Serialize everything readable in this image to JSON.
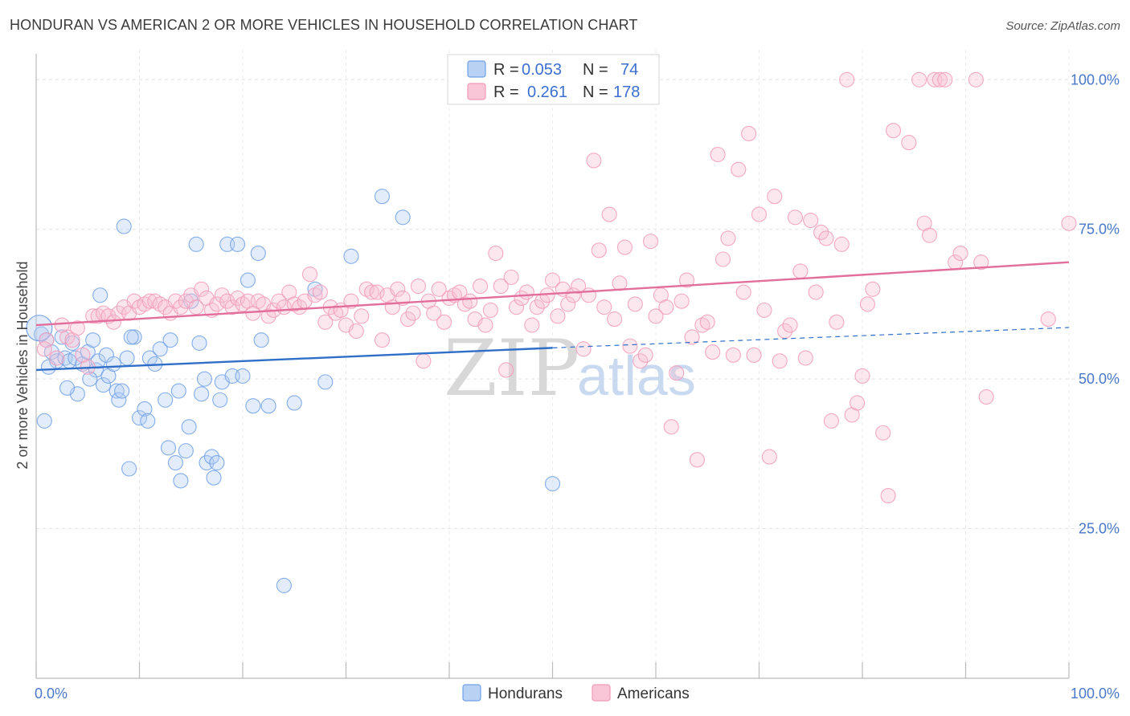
{
  "title": "HONDURAN VS AMERICAN 2 OR MORE VEHICLES IN HOUSEHOLD CORRELATION CHART",
  "source": "Source: ZipAtlas.com",
  "watermark": {
    "zip": "ZIP",
    "atlas": "atlas"
  },
  "chart_data": {
    "type": "scatter",
    "xlabel": "",
    "ylabel": "2 or more Vehicles in Household",
    "xlim": [
      0,
      100
    ],
    "ylim": [
      0,
      105
    ],
    "x_tick_labels": [
      {
        "v": 0,
        "label": "0.0%"
      },
      {
        "v": 100,
        "label": "100.0%"
      }
    ],
    "y_tick_labels": [
      {
        "v": 25,
        "label": "25.0%"
      },
      {
        "v": 50,
        "label": "50.0%"
      },
      {
        "v": 75,
        "label": "75.0%"
      },
      {
        "v": 100,
        "label": "100.0%"
      }
    ],
    "legend": [
      {
        "r_label": "R =",
        "r": "0.053",
        "n_label": "N =",
        "n": "74"
      },
      {
        "r_label": "R =",
        "r": "0.261",
        "n_label": "N =",
        "n": "178"
      }
    ],
    "series": [
      {
        "name": "Hondurans",
        "color": "#6fa0e6",
        "line_color": "#2f6fc8",
        "trend": {
          "x0": 0,
          "y0": 51.5,
          "x1": 50,
          "y1": 55.2,
          "dash_to_x": 100,
          "dash_to_y": 58.6
        },
        "points": [
          [
            0.5,
            57.5
          ],
          [
            0.8,
            43.0
          ],
          [
            1.0,
            56.5
          ],
          [
            1.5,
            54.5
          ],
          [
            2.0,
            53.0
          ],
          [
            2.5,
            57.0
          ],
          [
            2.8,
            53.5
          ],
          [
            3.2,
            53.0
          ],
          [
            3.5,
            56.0
          ],
          [
            3.8,
            53.5
          ],
          [
            4.0,
            47.5
          ],
          [
            4.5,
            52.5
          ],
          [
            5.0,
            54.5
          ],
          [
            5.5,
            56.5
          ],
          [
            5.8,
            51.5
          ],
          [
            6.0,
            53.0
          ],
          [
            6.5,
            49.0
          ],
          [
            6.8,
            54.0
          ],
          [
            7.0,
            50.5
          ],
          [
            7.5,
            52.5
          ],
          [
            7.8,
            48.0
          ],
          [
            8.0,
            46.5
          ],
          [
            8.3,
            48.0
          ],
          [
            8.5,
            75.5
          ],
          [
            8.8,
            53.5
          ],
          [
            9.0,
            35.0
          ],
          [
            9.5,
            57.0
          ],
          [
            10.0,
            43.5
          ],
          [
            10.5,
            45.0
          ],
          [
            10.8,
            43.0
          ],
          [
            11.0,
            53.5
          ],
          [
            11.5,
            52.5
          ],
          [
            12.0,
            55.0
          ],
          [
            12.5,
            46.5
          ],
          [
            13.0,
            56.5
          ],
          [
            13.5,
            36.0
          ],
          [
            13.8,
            48.0
          ],
          [
            14.0,
            33.0
          ],
          [
            14.5,
            38.0
          ],
          [
            15.0,
            63.0
          ],
          [
            15.5,
            72.5
          ],
          [
            15.8,
            56.0
          ],
          [
            16.0,
            47.5
          ],
          [
            16.3,
            50.0
          ],
          [
            16.5,
            36.0
          ],
          [
            17.0,
            37.0
          ],
          [
            17.2,
            33.5
          ],
          [
            17.5,
            36.0
          ],
          [
            18.0,
            49.5
          ],
          [
            18.5,
            72.5
          ],
          [
            19.0,
            50.5
          ],
          [
            19.5,
            72.5
          ],
          [
            20.0,
            50.5
          ],
          [
            20.5,
            66.5
          ],
          [
            21.0,
            45.5
          ],
          [
            21.5,
            71.0
          ],
          [
            21.8,
            56.5
          ],
          [
            22.5,
            45.5
          ],
          [
            24.0,
            15.5
          ],
          [
            25.0,
            46.0
          ],
          [
            27.0,
            65.0
          ],
          [
            28.0,
            49.5
          ],
          [
            30.5,
            70.5
          ],
          [
            33.5,
            80.5
          ],
          [
            35.5,
            77.0
          ],
          [
            50.0,
            32.5
          ],
          [
            1.2,
            52.0
          ],
          [
            6.2,
            64.0
          ],
          [
            9.2,
            57.0
          ],
          [
            12.8,
            38.5
          ],
          [
            17.8,
            46.5
          ],
          [
            3.0,
            48.5
          ],
          [
            5.2,
            50.0
          ],
          [
            14.8,
            42.0
          ]
        ]
      },
      {
        "name": "Americans",
        "color": "#f29ab8",
        "line_color": "#e26e9b",
        "trend": {
          "x0": 0,
          "y0": 59.0,
          "x1": 100,
          "y1": 69.5
        },
        "points": [
          [
            1.0,
            56.5
          ],
          [
            2.0,
            53.5
          ],
          [
            3.0,
            57.0
          ],
          [
            3.5,
            56.5
          ],
          [
            4.0,
            58.5
          ],
          [
            5.0,
            52.0
          ],
          [
            5.5,
            60.5
          ],
          [
            6.0,
            60.5
          ],
          [
            6.5,
            61.0
          ],
          [
            7.0,
            60.5
          ],
          [
            7.5,
            59.5
          ],
          [
            8.0,
            61.0
          ],
          [
            8.5,
            62.0
          ],
          [
            9.0,
            61.0
          ],
          [
            9.5,
            63.0
          ],
          [
            10.0,
            62.0
          ],
          [
            10.5,
            62.5
          ],
          [
            11.0,
            63.0
          ],
          [
            11.5,
            63.0
          ],
          [
            12.0,
            62.5
          ],
          [
            12.5,
            62.0
          ],
          [
            13.0,
            61.0
          ],
          [
            13.5,
            63.0
          ],
          [
            14.0,
            62.0
          ],
          [
            14.5,
            63.0
          ],
          [
            15.0,
            64.0
          ],
          [
            15.5,
            62.0
          ],
          [
            16.0,
            65.0
          ],
          [
            16.5,
            63.5
          ],
          [
            17.0,
            61.5
          ],
          [
            17.5,
            62.5
          ],
          [
            18.0,
            64.0
          ],
          [
            18.5,
            63.0
          ],
          [
            19.0,
            62.0
          ],
          [
            19.5,
            63.5
          ],
          [
            20.0,
            62.5
          ],
          [
            20.5,
            63.0
          ],
          [
            21.0,
            61.0
          ],
          [
            21.5,
            63.0
          ],
          [
            22.0,
            62.5
          ],
          [
            22.5,
            60.5
          ],
          [
            23.0,
            61.5
          ],
          [
            23.5,
            63.0
          ],
          [
            24.0,
            62.0
          ],
          [
            24.5,
            64.5
          ],
          [
            25.0,
            62.5
          ],
          [
            25.5,
            62.0
          ],
          [
            26.0,
            63.0
          ],
          [
            26.5,
            67.5
          ],
          [
            27.0,
            64.0
          ],
          [
            27.5,
            64.5
          ],
          [
            28.0,
            59.5
          ],
          [
            28.5,
            62.0
          ],
          [
            29.0,
            61.0
          ],
          [
            29.5,
            61.5
          ],
          [
            30.0,
            59.0
          ],
          [
            30.5,
            63.0
          ],
          [
            31.0,
            58.0
          ],
          [
            31.5,
            60.5
          ],
          [
            32.0,
            65.0
          ],
          [
            32.5,
            64.5
          ],
          [
            33.0,
            64.5
          ],
          [
            33.5,
            56.5
          ],
          [
            34.0,
            64.0
          ],
          [
            34.5,
            62.0
          ],
          [
            35.0,
            65.0
          ],
          [
            35.5,
            63.5
          ],
          [
            36.0,
            60.0
          ],
          [
            36.5,
            61.0
          ],
          [
            37.0,
            65.5
          ],
          [
            37.5,
            53.0
          ],
          [
            38.0,
            63.0
          ],
          [
            38.5,
            61.0
          ],
          [
            39.0,
            65.0
          ],
          [
            39.5,
            59.5
          ],
          [
            40.0,
            63.5
          ],
          [
            40.5,
            64.0
          ],
          [
            41.0,
            64.5
          ],
          [
            41.5,
            62.5
          ],
          [
            42.0,
            63.0
          ],
          [
            42.5,
            60.0
          ],
          [
            43.0,
            65.5
          ],
          [
            43.5,
            59.0
          ],
          [
            44.0,
            61.5
          ],
          [
            44.5,
            71.0
          ],
          [
            45.0,
            65.5
          ],
          [
            45.5,
            51.5
          ],
          [
            46.0,
            67.0
          ],
          [
            46.5,
            62.0
          ],
          [
            47.0,
            63.5
          ],
          [
            47.5,
            64.5
          ],
          [
            48.0,
            59.0
          ],
          [
            48.5,
            62.0
          ],
          [
            49.0,
            63.0
          ],
          [
            49.5,
            64.0
          ],
          [
            50.0,
            66.5
          ],
          [
            50.5,
            60.5
          ],
          [
            51.0,
            65.0
          ],
          [
            51.5,
            62.5
          ],
          [
            52.0,
            64.0
          ],
          [
            52.5,
            65.5
          ],
          [
            53.0,
            55.0
          ],
          [
            53.5,
            64.0
          ],
          [
            54.0,
            86.5
          ],
          [
            54.5,
            71.5
          ],
          [
            55.0,
            62.0
          ],
          [
            55.5,
            77.5
          ],
          [
            56.0,
            60.0
          ],
          [
            56.5,
            66.0
          ],
          [
            57.0,
            72.0
          ],
          [
            57.5,
            55.5
          ],
          [
            58.0,
            62.5
          ],
          [
            58.5,
            53.0
          ],
          [
            59.0,
            54.0
          ],
          [
            59.5,
            73.0
          ],
          [
            60.0,
            60.5
          ],
          [
            60.5,
            64.0
          ],
          [
            61.0,
            62.0
          ],
          [
            61.5,
            42.0
          ],
          [
            62.0,
            51.0
          ],
          [
            62.5,
            63.0
          ],
          [
            63.0,
            66.5
          ],
          [
            63.5,
            57.0
          ],
          [
            64.0,
            36.5
          ],
          [
            64.5,
            59.0
          ],
          [
            65.0,
            59.5
          ],
          [
            65.5,
            54.5
          ],
          [
            66.0,
            87.5
          ],
          [
            66.5,
            70.0
          ],
          [
            67.0,
            73.5
          ],
          [
            67.5,
            54.0
          ],
          [
            68.0,
            85.0
          ],
          [
            68.5,
            64.5
          ],
          [
            69.0,
            91.0
          ],
          [
            69.5,
            54.0
          ],
          [
            70.0,
            77.5
          ],
          [
            70.5,
            61.5
          ],
          [
            71.0,
            37.0
          ],
          [
            71.5,
            80.5
          ],
          [
            72.0,
            53.0
          ],
          [
            72.5,
            58.0
          ],
          [
            73.0,
            59.0
          ],
          [
            73.5,
            77.0
          ],
          [
            74.0,
            68.0
          ],
          [
            74.5,
            53.5
          ],
          [
            75.0,
            76.5
          ],
          [
            75.5,
            64.5
          ],
          [
            76.0,
            74.5
          ],
          [
            76.5,
            73.5
          ],
          [
            77.0,
            43.0
          ],
          [
            77.5,
            59.5
          ],
          [
            78.0,
            72.5
          ],
          [
            78.5,
            100.0
          ],
          [
            79.0,
            44.0
          ],
          [
            79.5,
            46.0
          ],
          [
            80.0,
            50.5
          ],
          [
            80.5,
            62.5
          ],
          [
            81.0,
            65.0
          ],
          [
            82.0,
            41.0
          ],
          [
            82.5,
            30.5
          ],
          [
            83.0,
            91.5
          ],
          [
            84.5,
            89.5
          ],
          [
            85.5,
            100.0
          ],
          [
            86.0,
            76.0
          ],
          [
            86.5,
            74.0
          ],
          [
            87.0,
            100.0
          ],
          [
            87.5,
            100.0
          ],
          [
            88.0,
            100.0
          ],
          [
            89.0,
            69.5
          ],
          [
            89.5,
            71.0
          ],
          [
            91.0,
            100.0
          ],
          [
            91.5,
            69.5
          ],
          [
            92.0,
            47.0
          ],
          [
            98.0,
            60.0
          ],
          [
            100.0,
            76.0
          ],
          [
            0.8,
            55.0
          ],
          [
            4.5,
            54.0
          ],
          [
            2.5,
            59.0
          ]
        ]
      }
    ]
  },
  "bottom_legend": [
    {
      "label": "Hondurans"
    },
    {
      "label": "Americans"
    }
  ]
}
